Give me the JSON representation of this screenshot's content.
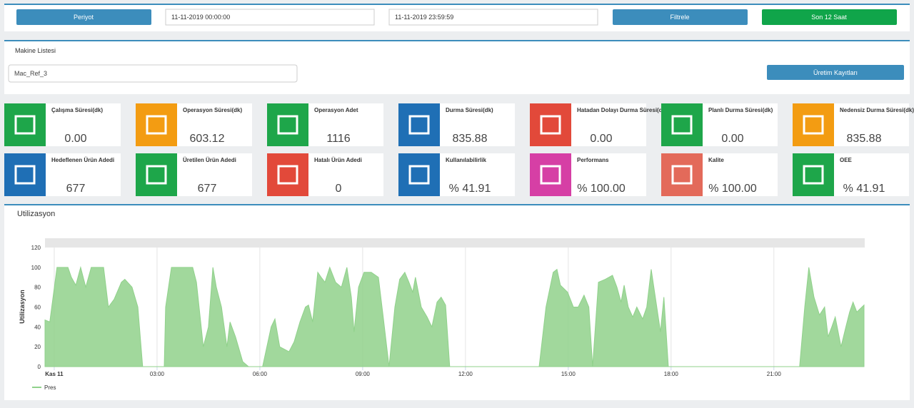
{
  "toolbar": {
    "period": "Periyot",
    "start": "11-11-2019 00:00:00",
    "end": "11-11-2019 23:59:59",
    "filter": "Filtrele",
    "last12": "Son 12 Saat"
  },
  "machines": {
    "title": "Makine Listesi",
    "selected": "Mac_Ref_3",
    "records": "Üretim Kayıtları"
  },
  "tiles": [
    {
      "label": "Çalışma Süresi(dk)",
      "value": "0.00",
      "color": "#1ea64a"
    },
    {
      "label": "Operasyon Süresi(dk)",
      "value": "603.12",
      "color": "#f39c12"
    },
    {
      "label": "Operasyon Adet",
      "value": "1116",
      "color": "#1ea64a"
    },
    {
      "label": "Durma Süresi(dk)",
      "value": "835.88",
      "color": "#1f6fb5"
    },
    {
      "label": "Hatadan Dolayı Durma Süresi(dk)",
      "value": "0.00",
      "color": "#e2493a"
    },
    {
      "label": "Planlı Durma Süresi(dk)",
      "value": "0.00",
      "color": "#1ea64a"
    },
    {
      "label": "Nedensiz Durma Süresi(dk)",
      "value": "835.88",
      "color": "#f39c12"
    },
    {
      "label": "Hedeflenen Ürün Adedi",
      "value": "677",
      "color": "#1f6fb5"
    },
    {
      "label": "Üretilen Ürün Adedi",
      "value": "677",
      "color": "#1ea64a"
    },
    {
      "label": "Hatalı Ürün Adedi",
      "value": "0",
      "color": "#e2493a"
    },
    {
      "label": "Kullanılabilirlik",
      "value": "% 41.91",
      "color": "#1f6fb5"
    },
    {
      "label": "Performans",
      "value": "% 100.00",
      "color": "#d63fa5"
    },
    {
      "label": "Kalite",
      "value": "% 100.00",
      "color": "#e36a5a"
    },
    {
      "label": "OEE",
      "value": "% 41.91",
      "color": "#1ea64a"
    }
  ],
  "chart": {
    "type": "area",
    "title": "Utilizasyon",
    "y_label": "Utilizasyon",
    "x": [
      -0.27,
      -0.13,
      0.08,
      0.4,
      0.5,
      0.63,
      0.77,
      0.92,
      1.08,
      1.23,
      1.44,
      1.58,
      1.75,
      1.96,
      2.06,
      2.27,
      2.44,
      2.58,
      3.21,
      3.25,
      3.42,
      4.04,
      4.15,
      4.35,
      4.5,
      4.63,
      4.73,
      4.88,
      5.04,
      5.13,
      5.29,
      5.5,
      5.67,
      6.08,
      6.33,
      6.44,
      6.58,
      6.85,
      7.0,
      7.17,
      7.33,
      7.42,
      7.54,
      7.69,
      7.79,
      7.9,
      8.04,
      8.21,
      8.38,
      8.54,
      8.67,
      8.75,
      8.88,
      9.04,
      9.25,
      9.46,
      9.6,
      9.77,
      9.94,
      10.08,
      10.23,
      10.35,
      10.46,
      10.54,
      10.71,
      10.88,
      11.02,
      11.17,
      11.29,
      11.42,
      11.54,
      14.15,
      14.35,
      14.56,
      14.67,
      14.77,
      14.98,
      15.15,
      15.29,
      15.46,
      15.6,
      15.71,
      15.88,
      16.08,
      16.29,
      16.42,
      16.54,
      16.63,
      16.75,
      16.88,
      17.0,
      17.17,
      17.29,
      17.42,
      17.54,
      17.69,
      17.79,
      17.92,
      21.75,
      21.9,
      22.02,
      22.17,
      22.33,
      22.48,
      22.58,
      22.69,
      22.79,
      22.96,
      23.1,
      23.21,
      23.31,
      23.42,
      23.63
    ],
    "series": [
      {
        "name": "Pres",
        "color": "#90d18b",
        "values": [
          47,
          45,
          100,
          100,
          90,
          82,
          100,
          80,
          100,
          100,
          100,
          60,
          68,
          85,
          88,
          80,
          60,
          0,
          0,
          60,
          100,
          100,
          85,
          20,
          40,
          100,
          80,
          60,
          20,
          45,
          30,
          5,
          0,
          0,
          40,
          48,
          20,
          15,
          25,
          45,
          60,
          62,
          45,
          95,
          90,
          85,
          100,
          85,
          80,
          100,
          70,
          35,
          80,
          95,
          95,
          90,
          50,
          0,
          60,
          88,
          95,
          85,
          75,
          90,
          60,
          50,
          40,
          65,
          70,
          62,
          0,
          0,
          60,
          95,
          98,
          82,
          75,
          60,
          60,
          72,
          60,
          0,
          85,
          88,
          92,
          80,
          65,
          82,
          60,
          50,
          60,
          48,
          60,
          98,
          70,
          35,
          70,
          0,
          0,
          60,
          100,
          70,
          52,
          60,
          30,
          40,
          50,
          20,
          40,
          55,
          65,
          55,
          62
        ]
      }
    ],
    "xlim": [
      -0.27,
      23.63
    ],
    "xticks": [
      {
        "value": 0,
        "label": "Kas 11"
      },
      {
        "value": 3,
        "label": "03:00"
      },
      {
        "value": 6,
        "label": "06:00"
      },
      {
        "value": 9,
        "label": "09:00"
      },
      {
        "value": 12,
        "label": "12:00"
      },
      {
        "value": 15,
        "label": "15:00"
      },
      {
        "value": 18,
        "label": "18:00"
      },
      {
        "value": 21,
        "label": "21:00"
      }
    ],
    "ylim": [
      0,
      120
    ],
    "yticks": [
      0,
      20,
      40,
      60,
      80,
      100,
      120
    ],
    "grid": true
  }
}
